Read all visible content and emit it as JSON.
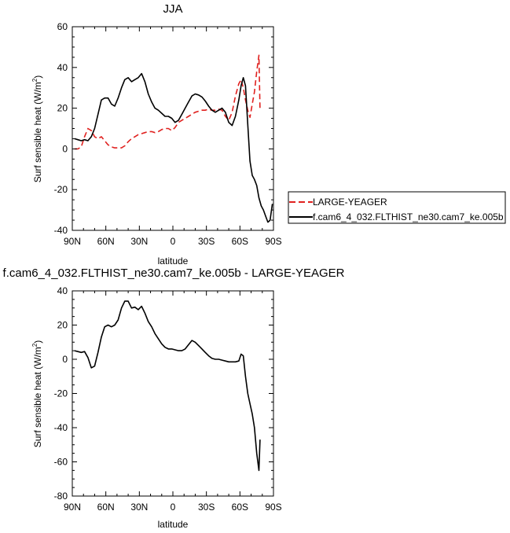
{
  "chart_data": [
    {
      "type": "line",
      "title": "JJA",
      "xlabel": "latitude",
      "ylabel": "Surf sensible heat (W/m",
      "ylabel_sup": "2",
      "ylabel_close": ")",
      "xlim": [
        90,
        -90
      ],
      "ylim": [
        -40,
        60
      ],
      "x_ticks": [
        90,
        60,
        30,
        0,
        -30,
        -60,
        -90
      ],
      "x_tick_labels": [
        "90N",
        "60N",
        "30N",
        "0",
        "30S",
        "60S",
        "90S"
      ],
      "y_ticks": [
        -40,
        -20,
        0,
        20,
        40,
        60
      ],
      "y_tick_labels": [
        "-40",
        "-20",
        "0",
        "20",
        "40",
        "60"
      ],
      "grid": false,
      "legend_position": "right",
      "series": [
        {
          "name": "LARGE-YEAGER",
          "color": "#e0211f",
          "dash": "dashed",
          "x": [
            88,
            85,
            82,
            79,
            76,
            73,
            70,
            67,
            64,
            61,
            58,
            55,
            52,
            49,
            46,
            43,
            40,
            37,
            34,
            31,
            28,
            25,
            22,
            19,
            16,
            13,
            10,
            7,
            4,
            1,
            -2,
            -5,
            -8,
            -11,
            -14,
            -17,
            -20,
            -23,
            -26,
            -29,
            -32,
            -35,
            -38,
            -41,
            -44,
            -47,
            -50,
            -53,
            -56,
            -59,
            -61,
            -63,
            -65,
            -67,
            -69,
            -71,
            -73,
            -75,
            -77,
            -78
          ],
          "y": [
            0,
            0,
            1,
            6,
            10,
            9,
            6,
            5,
            6,
            4,
            2,
            1,
            0.5,
            0.5,
            0.5,
            1.5,
            3.5,
            5,
            6,
            7,
            7.5,
            8,
            8.5,
            8.5,
            8,
            8.5,
            9.5,
            10,
            10,
            9,
            10.5,
            13,
            14,
            15,
            16,
            17,
            18,
            18.5,
            19,
            19,
            19.5,
            19,
            19,
            19.5,
            19,
            16,
            14,
            18,
            26,
            32,
            34,
            30,
            24,
            19,
            15.5,
            22,
            28,
            38,
            46,
            19
          ]
        },
        {
          "name": "f.cam6_4_032.FLTHIST_ne30.cam7_ke.005b",
          "color": "#000000",
          "dash": "solid",
          "x": [
            88,
            85,
            82,
            79,
            76,
            73,
            70,
            67,
            64,
            61,
            58,
            55,
            52,
            49,
            46,
            43,
            40,
            37,
            34,
            31,
            28,
            25,
            22,
            19,
            16,
            13,
            10,
            7,
            4,
            1,
            -2,
            -5,
            -8,
            -11,
            -14,
            -17,
            -20,
            -23,
            -26,
            -29,
            -32,
            -35,
            -38,
            -41,
            -44,
            -47,
            -50,
            -53,
            -56,
            -59,
            -61,
            -63,
            -65,
            -67,
            -69,
            -71,
            -73,
            -75,
            -77,
            -79,
            -81,
            -83,
            -85,
            -87,
            -89
          ],
          "y": [
            5,
            4.5,
            4,
            4.5,
            4,
            6,
            10,
            17,
            24,
            25,
            25,
            22,
            21,
            25,
            30,
            34,
            35,
            33,
            34,
            35,
            37,
            33,
            27,
            23,
            20,
            19,
            17.5,
            16,
            16,
            15,
            13,
            14,
            17,
            20,
            23,
            26,
            27,
            26.5,
            25.5,
            23.5,
            21,
            19,
            18,
            19,
            20,
            18,
            13,
            11.5,
            16,
            24,
            31,
            35,
            31,
            12,
            -6,
            -13,
            -15,
            -18,
            -24,
            -28,
            -30,
            -33,
            -36,
            -35,
            -27
          ]
        }
      ]
    },
    {
      "type": "line",
      "title": "f.cam6_4_032.FLTHIST_ne30.cam7_ke.005b - LARGE-YEAGER",
      "xlabel": "latitude",
      "ylabel": "Surf sensible heat (W/m",
      "ylabel_sup": "2",
      "ylabel_close": ")",
      "xlim": [
        90,
        -90
      ],
      "ylim": [
        -80,
        40
      ],
      "x_ticks": [
        90,
        60,
        30,
        0,
        -30,
        -60,
        -90
      ],
      "x_tick_labels": [
        "90N",
        "60N",
        "30N",
        "0",
        "30S",
        "60S",
        "90S"
      ],
      "y_ticks": [
        -80,
        -60,
        -40,
        -20,
        0,
        20,
        40
      ],
      "y_tick_labels": [
        "-80",
        "-60",
        "-40",
        "-20",
        "0",
        "20",
        "40"
      ],
      "grid": false,
      "series": [
        {
          "color": "#000000",
          "dash": "solid",
          "x": [
            88,
            85,
            82,
            79,
            76,
            73,
            70,
            67,
            64,
            61,
            58,
            55,
            52,
            49,
            46,
            43,
            40,
            37,
            34,
            31,
            28,
            25,
            22,
            19,
            16,
            13,
            10,
            7,
            4,
            1,
            -2,
            -5,
            -8,
            -11,
            -14,
            -17,
            -20,
            -23,
            -26,
            -29,
            -32,
            -35,
            -38,
            -41,
            -44,
            -47,
            -50,
            -53,
            -56,
            -59,
            -61,
            -63,
            -65,
            -67,
            -69,
            -71,
            -73,
            -75,
            -77,
            -78
          ],
          "y": [
            5,
            4.5,
            4,
            4.5,
            1,
            -5,
            -4,
            4,
            13,
            19,
            20,
            19,
            20,
            23,
            30,
            34,
            34,
            30,
            30.5,
            29,
            31,
            27,
            22,
            19,
            15,
            12,
            9,
            7,
            6,
            6,
            5.5,
            5,
            5,
            6,
            8.5,
            11,
            10,
            8,
            6,
            4,
            2,
            0.5,
            0,
            0,
            -0.5,
            -1,
            -1.5,
            -1.5,
            -1.5,
            -1,
            3,
            2,
            -10,
            -20,
            -26,
            -32,
            -40,
            -55,
            -65,
            -47
          ]
        }
      ]
    }
  ]
}
